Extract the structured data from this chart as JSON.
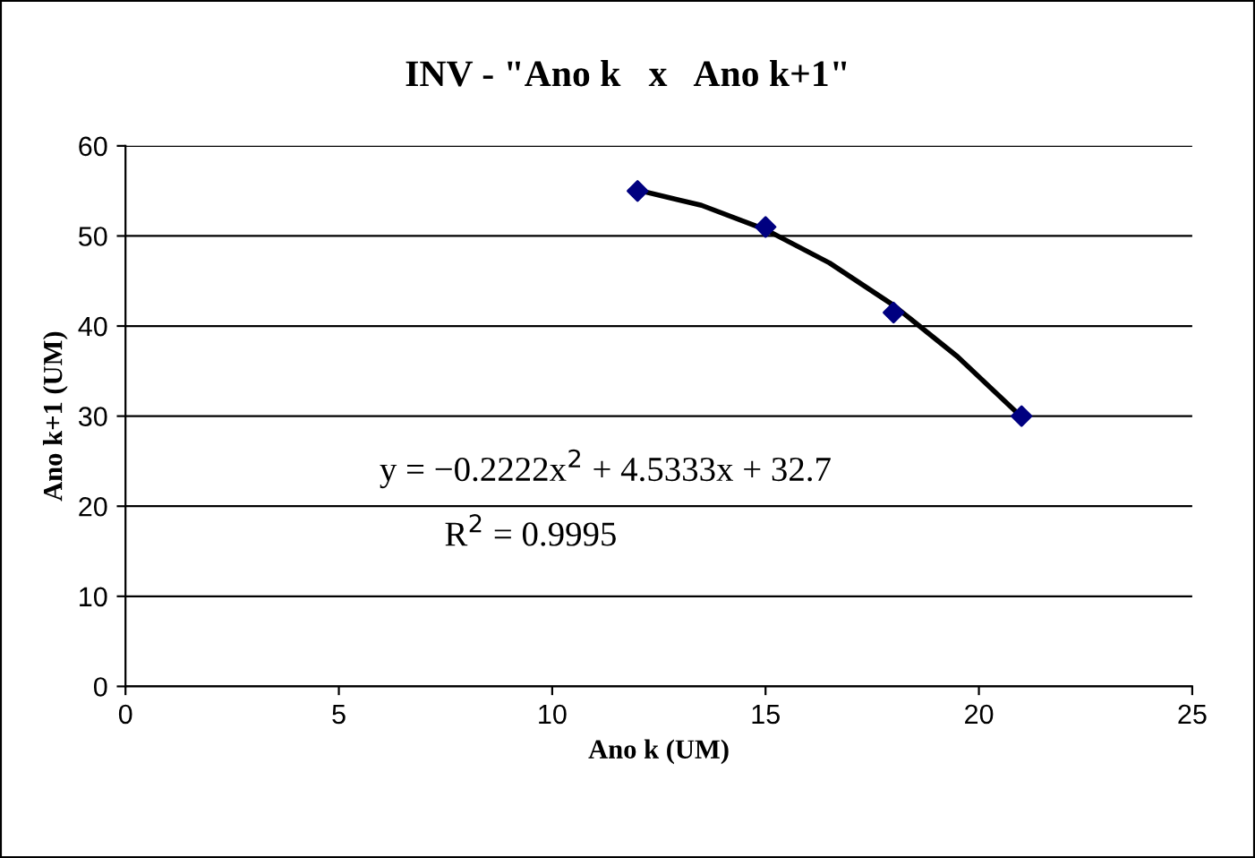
{
  "chart_data": {
    "type": "scatter",
    "title": "INV - \"Ano k   x   Ano k+1\"",
    "xlabel": "Ano k (UM)",
    "ylabel": "Ano k+1 (UM)",
    "series": [
      {
        "color": "#000080",
        "marker": "diamond",
        "x": [
          12,
          15,
          18,
          21
        ],
        "values": [
          55,
          51,
          41.5,
          30
        ]
      },
      {
        "type": "line",
        "color": "#000000",
        "marker": "none",
        "line_style": "solid",
        "x": [
          12,
          13.5,
          15,
          16.5,
          18,
          19.5,
          21
        ],
        "values": [
          55.1,
          53.4,
          50.7,
          47.0,
          42.3,
          36.6,
          29.9
        ]
      }
    ],
    "annotations": [
      "y = −0.2222x$^{2}$ + 4.5333x + 32.7",
      "R$^{2}$ = 0.9995"
    ],
    "xlim": [
      0,
      25
    ],
    "xticks": [
      0,
      5,
      10,
      15,
      20,
      25
    ],
    "ylim": [
      0,
      60
    ],
    "yticks": [
      0,
      10,
      20,
      30,
      40,
      50,
      60
    ],
    "grid": "y",
    "legend": false
  }
}
